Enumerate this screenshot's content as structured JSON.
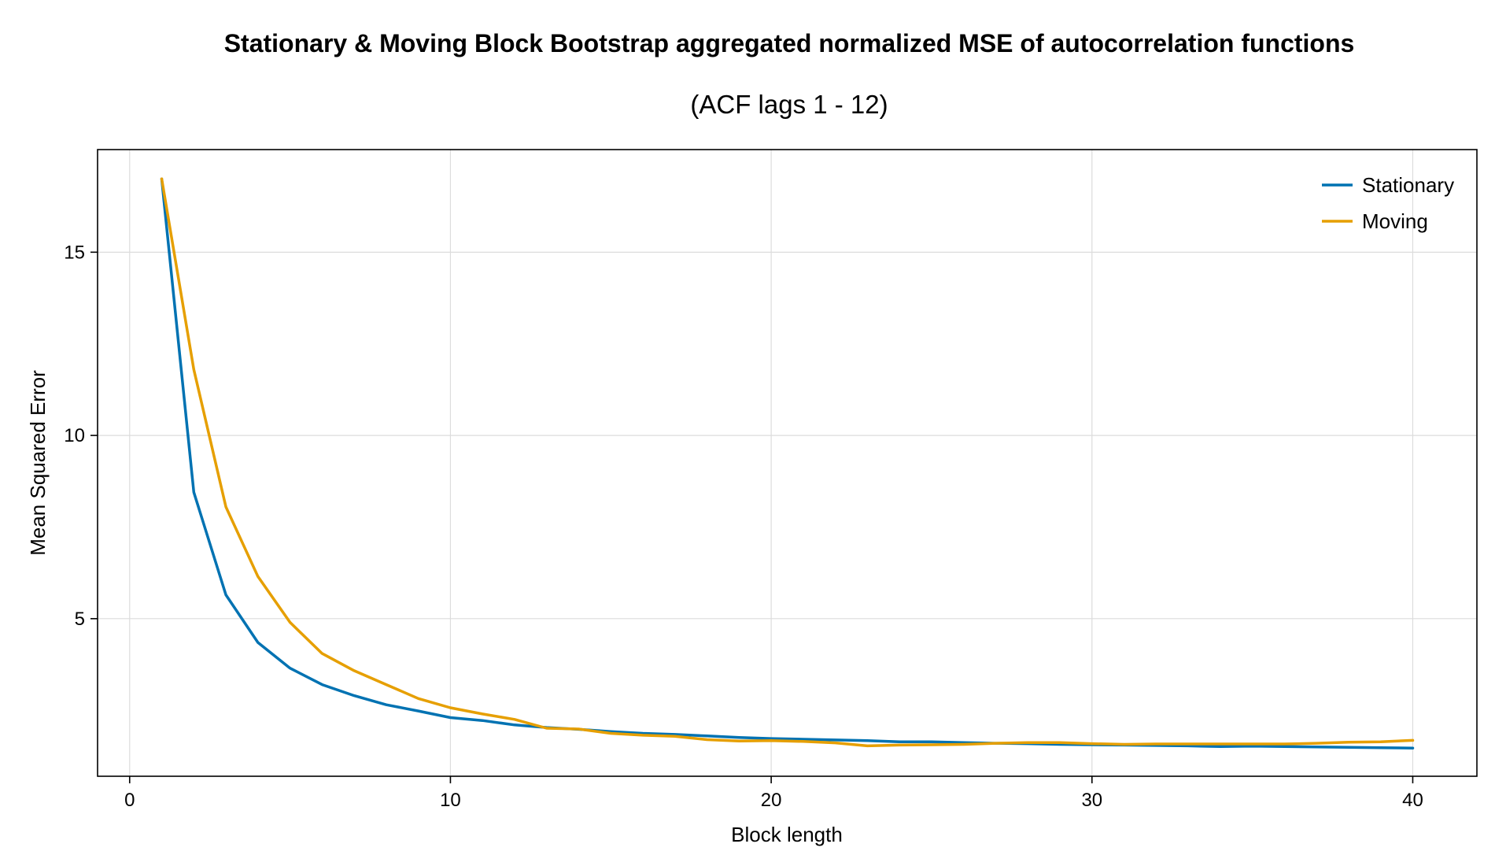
{
  "chart_data": {
    "type": "line",
    "title": "Stationary & Moving Block Bootstrap aggregated normalized MSE of autocorrelation functions",
    "subtitle": "(ACF lags 1 - 12)",
    "xlabel": "Block length",
    "ylabel": "Mean Squared Error",
    "xlim": [
      -1,
      42
    ],
    "ylim": [
      0.7,
      17.8
    ],
    "xticks": [
      0,
      10,
      20,
      30,
      40
    ],
    "yticks": [
      5,
      10,
      15
    ],
    "xtick_labels": [
      "0",
      "10",
      "20",
      "30",
      "40"
    ],
    "ytick_labels": [
      "5",
      "10",
      "15"
    ],
    "grid": true,
    "legend_position": "top-right",
    "x": [
      1,
      2,
      3,
      4,
      5,
      6,
      7,
      8,
      9,
      10,
      11,
      12,
      13,
      14,
      15,
      16,
      17,
      18,
      19,
      20,
      21,
      22,
      23,
      24,
      25,
      26,
      27,
      28,
      29,
      30,
      31,
      32,
      33,
      34,
      35,
      36,
      37,
      38,
      39,
      40
    ],
    "series": [
      {
        "name": "Stationary",
        "color": "#0072b2",
        "values": [
          17.0,
          8.45,
          5.65,
          4.35,
          3.65,
          3.2,
          2.9,
          2.65,
          2.48,
          2.3,
          2.22,
          2.1,
          2.03,
          1.98,
          1.92,
          1.87,
          1.84,
          1.8,
          1.76,
          1.73,
          1.71,
          1.69,
          1.67,
          1.64,
          1.64,
          1.62,
          1.6,
          1.59,
          1.57,
          1.56,
          1.55,
          1.54,
          1.53,
          1.51,
          1.52,
          1.51,
          1.5,
          1.49,
          1.48,
          1.47
        ]
      },
      {
        "name": "Moving",
        "color": "#e69f00",
        "values": [
          17.0,
          11.8,
          8.05,
          6.15,
          4.9,
          4.05,
          3.58,
          3.2,
          2.82,
          2.57,
          2.4,
          2.25,
          2.01,
          1.99,
          1.87,
          1.82,
          1.79,
          1.7,
          1.66,
          1.67,
          1.65,
          1.61,
          1.53,
          1.55,
          1.56,
          1.57,
          1.6,
          1.62,
          1.62,
          1.59,
          1.57,
          1.58,
          1.58,
          1.58,
          1.58,
          1.58,
          1.6,
          1.63,
          1.64,
          1.68
        ]
      }
    ]
  }
}
